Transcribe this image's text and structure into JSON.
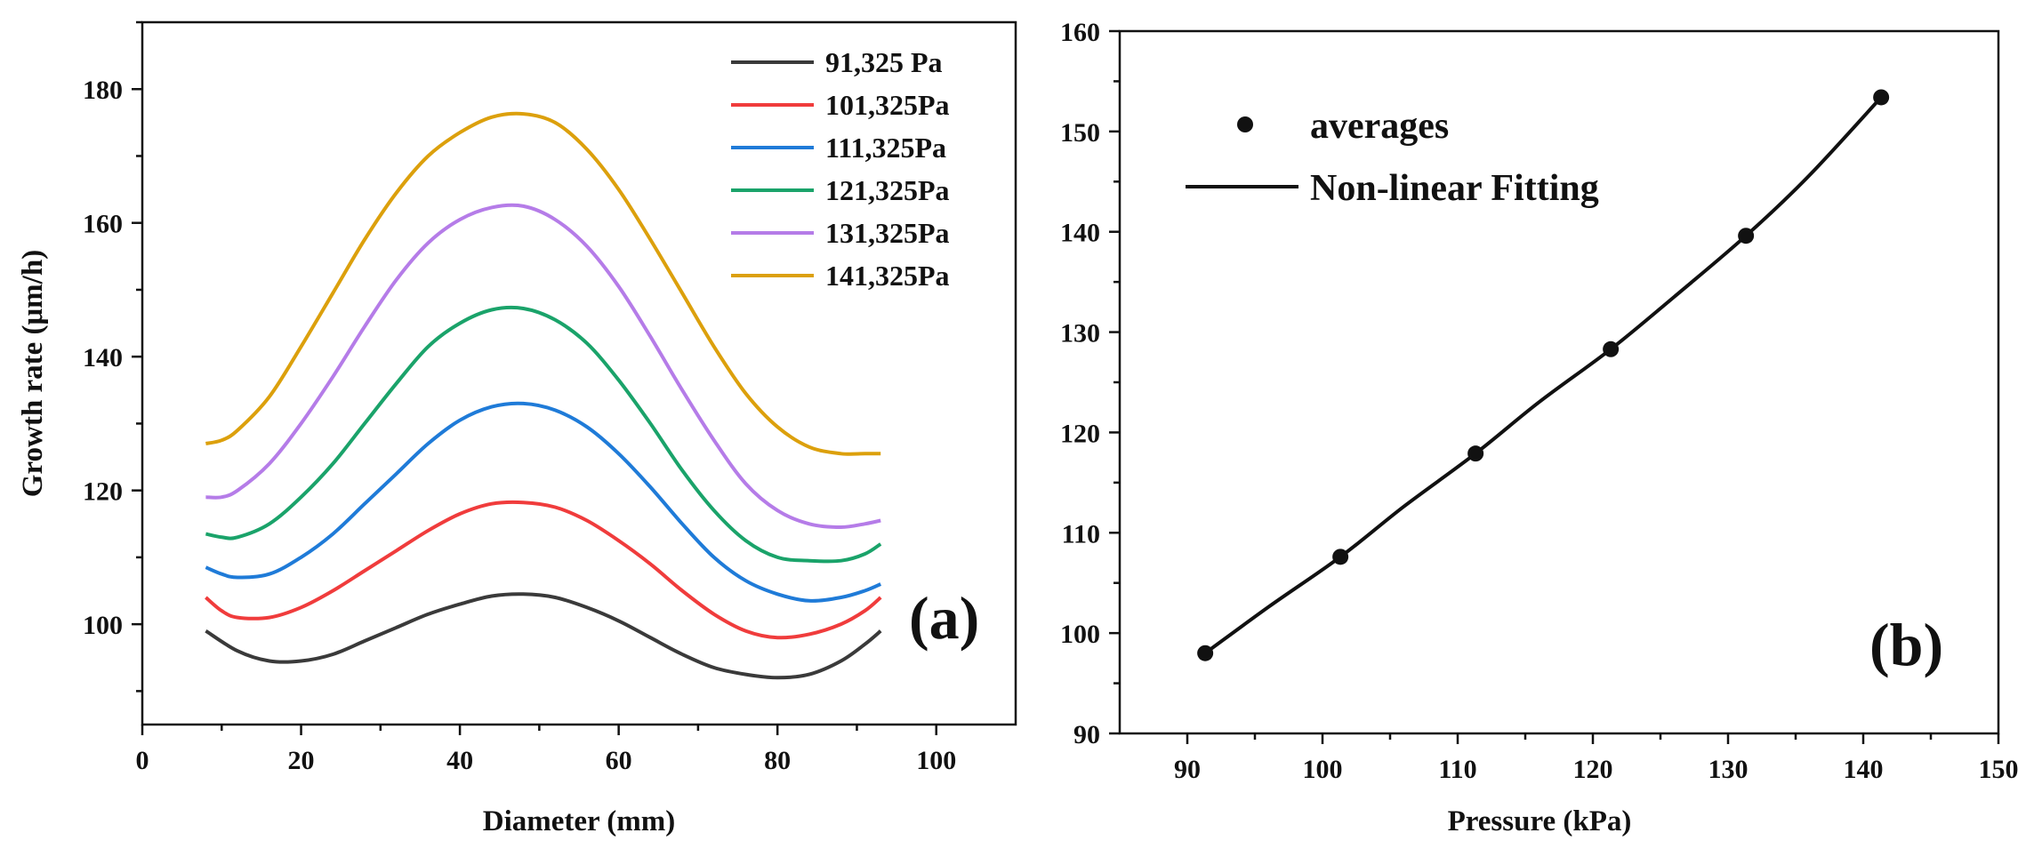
{
  "chart_data": [
    {
      "type": "line",
      "panel_label": "(a)",
      "title": "",
      "xlabel": "Diameter (mm)",
      "ylabel": "Growth rate (μm/h)",
      "xlim": [
        0,
        110
      ],
      "ylim": [
        85,
        190
      ],
      "xticks": [
        0,
        20,
        40,
        60,
        80,
        100
      ],
      "yticks": [
        100,
        120,
        140,
        160,
        180
      ],
      "xtick_labels": [
        "0",
        "20",
        "40",
        "60",
        "80",
        "100"
      ],
      "ytick_labels": [
        "100",
        "120",
        "140",
        "160",
        "180"
      ],
      "legend_position": "top-right",
      "grid": false,
      "series": [
        {
          "name": "91,325 Pa",
          "color": "#3a3a3a",
          "x": [
            8,
            12,
            16,
            20,
            24,
            28,
            32,
            36,
            40,
            44,
            48,
            52,
            56,
            60,
            64,
            68,
            72,
            76,
            80,
            84,
            88,
            91,
            93
          ],
          "values": [
            99,
            96,
            94.5,
            94.5,
            95.5,
            97.5,
            99.5,
            101.5,
            103,
            104.2,
            104.5,
            104,
            102.5,
            100.5,
            98,
            95.5,
            93.5,
            92.5,
            92,
            92.5,
            94.5,
            97,
            99
          ]
        },
        {
          "name": "101,325Pa",
          "color": "#f03c3c",
          "x": [
            8,
            10,
            12,
            16,
            20,
            24,
            28,
            32,
            36,
            40,
            44,
            48,
            52,
            56,
            60,
            64,
            68,
            72,
            76,
            80,
            84,
            88,
            91,
            93
          ],
          "values": [
            104,
            102,
            101,
            101,
            102.5,
            105,
            108,
            111,
            114,
            116.5,
            118,
            118.2,
            117.5,
            115.5,
            112.5,
            109,
            105,
            101.5,
            99,
            98,
            98.5,
            100,
            102,
            104
          ]
        },
        {
          "name": "111,325Pa",
          "color": "#1f7bd8",
          "x": [
            8,
            10,
            12,
            16,
            20,
            24,
            28,
            32,
            36,
            40,
            44,
            48,
            52,
            56,
            60,
            64,
            68,
            72,
            76,
            80,
            84,
            88,
            91,
            93
          ],
          "values": [
            108.5,
            107.5,
            107,
            107.5,
            110,
            113.5,
            118,
            122.5,
            127,
            130.5,
            132.5,
            133,
            132,
            129.5,
            125.5,
            120.5,
            115,
            110,
            106.5,
            104.5,
            103.5,
            104,
            105,
            106
          ]
        },
        {
          "name": "121,325Pa",
          "color": "#1aa36a",
          "x": [
            8,
            10,
            12,
            16,
            20,
            24,
            28,
            32,
            36,
            40,
            44,
            48,
            52,
            56,
            60,
            64,
            68,
            72,
            76,
            80,
            84,
            88,
            91,
            93
          ],
          "values": [
            113.5,
            113,
            113,
            115,
            119,
            124,
            130,
            136,
            141.5,
            145,
            147,
            147.2,
            145.5,
            142,
            136.5,
            130,
            123,
            117,
            112.5,
            110,
            109.5,
            109.5,
            110.5,
            112
          ]
        },
        {
          "name": "131,325Pa",
          "color": "#b57ce8",
          "x": [
            8,
            10,
            12,
            16,
            20,
            24,
            28,
            32,
            36,
            40,
            44,
            48,
            52,
            56,
            60,
            64,
            68,
            72,
            76,
            80,
            84,
            88,
            91,
            93
          ],
          "values": [
            119,
            119,
            120,
            124,
            130,
            137,
            144.5,
            151.5,
            157,
            160.5,
            162.3,
            162.5,
            160.5,
            156.5,
            150.5,
            143,
            135,
            127.5,
            121,
            117,
            115,
            114.5,
            115,
            115.5
          ]
        },
        {
          "name": "141,325Pa",
          "color": "#dca00c",
          "x": [
            8,
            10,
            12,
            16,
            20,
            24,
            28,
            32,
            36,
            40,
            44,
            48,
            52,
            56,
            60,
            64,
            68,
            72,
            76,
            80,
            84,
            88,
            91,
            93
          ],
          "values": [
            127,
            127.5,
            129,
            134,
            141.5,
            149.5,
            157.5,
            164.5,
            170,
            173.5,
            175.8,
            176.3,
            175,
            171,
            165,
            157.5,
            149.5,
            141.5,
            134.5,
            129.5,
            126.5,
            125.5,
            125.5,
            125.5
          ]
        }
      ]
    },
    {
      "type": "scatter",
      "panel_label": "(b)",
      "title": "",
      "xlabel": "Pressure (kPa)",
      "ylabel": "",
      "xlim": [
        85,
        150
      ],
      "ylim": [
        90,
        160
      ],
      "xticks": [
        90,
        100,
        110,
        120,
        130,
        140,
        150
      ],
      "yticks": [
        90,
        100,
        110,
        120,
        130,
        140,
        150,
        160
      ],
      "xtick_labels": [
        "90",
        "100",
        "110",
        "120",
        "130",
        "140",
        "150"
      ],
      "ytick_labels": [
        "90",
        "100",
        "110",
        "120",
        "130",
        "140",
        "150",
        "160"
      ],
      "legend_position": "top-left",
      "grid": false,
      "series": [
        {
          "name": "averages",
          "kind": "points",
          "x": [
            91.325,
            101.325,
            111.325,
            121.325,
            131.325,
            141.325
          ],
          "values": [
            98,
            107.6,
            117.9,
            128.3,
            139.6,
            153.4
          ]
        },
        {
          "name": "Non-linear Fitting",
          "kind": "fit_line",
          "x": [
            91.325,
            96,
            101.325,
            106,
            111.325,
            116,
            121.325,
            126,
            131.325,
            136,
            141.325
          ],
          "values": [
            98,
            102.6,
            107.6,
            112.6,
            117.9,
            123,
            128.3,
            133.5,
            139.6,
            145.6,
            153.4
          ]
        }
      ]
    }
  ]
}
